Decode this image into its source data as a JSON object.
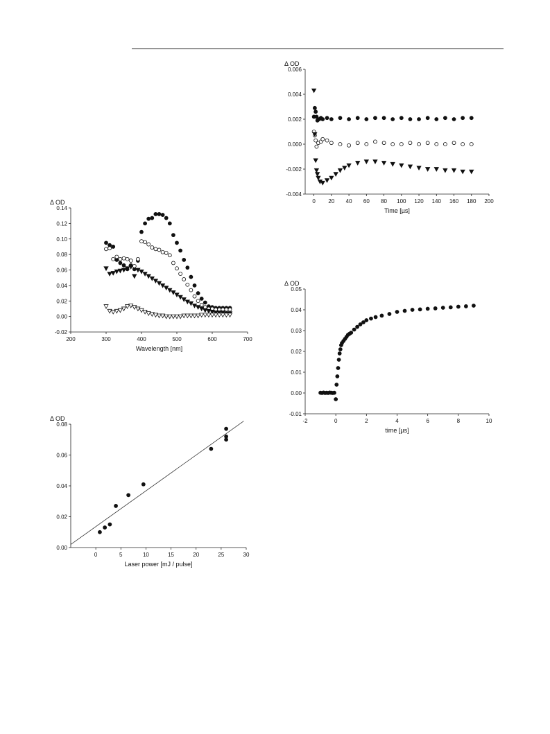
{
  "chart_data": [
    {
      "id": "transient-time",
      "type": "scatter",
      "ylabel": "Δ OD",
      "xlabel": "Time [µs]",
      "xlim": [
        -10,
        200
      ],
      "ylim": [
        -0.004,
        0.006
      ],
      "xticks": [
        0,
        20,
        40,
        60,
        80,
        100,
        120,
        140,
        160,
        180,
        200
      ],
      "yticks": [
        -0.004,
        -0.002,
        0.0,
        0.002,
        0.004,
        0.006
      ],
      "ytick_labels": [
        "-0.004",
        "-0.002",
        "0.000",
        "0.002",
        "0.004",
        "0.006"
      ],
      "series": [
        {
          "marker": "filled-circle",
          "x": [
            0,
            1,
            2,
            3,
            4,
            6,
            8,
            10,
            15,
            20,
            30,
            40,
            50,
            60,
            70,
            80,
            90,
            100,
            110,
            120,
            130,
            140,
            150,
            160,
            170,
            180
          ],
          "y": [
            0.0022,
            0.0029,
            0.0026,
            0.0022,
            0.0019,
            0.002,
            0.0021,
            0.002,
            0.0021,
            0.002,
            0.0021,
            0.002,
            0.0021,
            0.002,
            0.0021,
            0.0021,
            0.002,
            0.0021,
            0.002,
            0.002,
            0.0021,
            0.002,
            0.0021,
            0.002,
            0.0021,
            0.0021
          ]
        },
        {
          "marker": "open-circle",
          "x": [
            0,
            1,
            2,
            3,
            5,
            8,
            10,
            15,
            20,
            30,
            40,
            50,
            60,
            70,
            80,
            90,
            100,
            110,
            120,
            130,
            140,
            150,
            160,
            170,
            180
          ],
          "y": [
            0.001,
            0.0007,
            0.0003,
            -0.0002,
            0.0001,
            0.0002,
            0.0004,
            0.0003,
            0.0001,
            0.0,
            -0.0001,
            0.0001,
            0.0,
            0.0002,
            0.0001,
            0.0,
            0.0,
            0.0001,
            0.0,
            0.0001,
            0.0,
            0.0,
            0.0001,
            0.0,
            0.0
          ]
        },
        {
          "marker": "filled-triangle-down",
          "x": [
            0,
            1,
            2,
            3,
            4,
            5,
            7,
            10,
            15,
            20,
            25,
            30,
            35,
            40,
            50,
            60,
            70,
            80,
            90,
            100,
            110,
            120,
            130,
            140,
            150,
            160,
            170,
            180
          ],
          "y": [
            0.0043,
            0.0008,
            -0.0013,
            -0.0021,
            -0.0024,
            -0.0027,
            -0.003,
            -0.0031,
            -0.0029,
            -0.0027,
            -0.0024,
            -0.0021,
            -0.0019,
            -0.0017,
            -0.0015,
            -0.0014,
            -0.0014,
            -0.0015,
            -0.0016,
            -0.0017,
            -0.0018,
            -0.0019,
            -0.002,
            -0.002,
            -0.0021,
            -0.0021,
            -0.0022,
            -0.0022
          ]
        }
      ]
    },
    {
      "id": "spectrum",
      "type": "scatter",
      "ylabel": "Δ OD",
      "xlabel": "Wavelength [nm]",
      "xlim": [
        200,
        700
      ],
      "ylim": [
        -0.02,
        0.14
      ],
      "xticks": [
        200,
        300,
        400,
        500,
        600,
        700
      ],
      "yticks": [
        -0.02,
        0.0,
        0.02,
        0.04,
        0.06,
        0.08,
        0.1,
        0.12,
        0.14
      ],
      "ytick_labels": [
        "-0.02",
        "0.00",
        "0.02",
        "0.04",
        "0.06",
        "0.08",
        "0.10",
        "0.12",
        "0.14"
      ],
      "series": [
        {
          "marker": "filled-circle",
          "x": [
            300,
            310,
            320,
            330,
            340,
            350,
            360,
            370,
            380,
            390,
            400,
            410,
            420,
            430,
            440,
            450,
            460,
            470,
            480,
            490,
            500,
            510,
            520,
            530,
            540,
            550,
            560,
            570,
            580,
            590,
            600,
            610,
            620,
            630,
            640,
            650
          ],
          "y": [
            0.095,
            0.092,
            0.09,
            0.073,
            0.069,
            0.066,
            0.061,
            0.066,
            0.061,
            0.072,
            0.109,
            0.12,
            0.126,
            0.127,
            0.132,
            0.132,
            0.131,
            0.127,
            0.12,
            0.105,
            0.095,
            0.085,
            0.073,
            0.063,
            0.051,
            0.04,
            0.03,
            0.023,
            0.018,
            0.013,
            0.012,
            0.011,
            0.011,
            0.011,
            0.011,
            0.011
          ]
        },
        {
          "marker": "open-circle",
          "x": [
            300,
            310,
            320,
            330,
            340,
            350,
            360,
            370,
            380,
            390,
            400,
            410,
            420,
            430,
            440,
            450,
            460,
            470,
            480,
            490,
            500,
            510,
            520,
            530,
            540,
            550,
            560,
            570,
            580,
            590,
            600,
            610,
            620,
            630,
            640,
            650
          ],
          "y": [
            0.087,
            0.088,
            0.074,
            0.077,
            0.074,
            0.075,
            0.074,
            0.072,
            0.065,
            0.074,
            0.097,
            0.096,
            0.093,
            0.089,
            0.087,
            0.086,
            0.083,
            0.082,
            0.079,
            0.069,
            0.062,
            0.055,
            0.048,
            0.041,
            0.034,
            0.026,
            0.02,
            0.015,
            0.012,
            0.01,
            0.01,
            0.009,
            0.009,
            0.009,
            0.009,
            0.009
          ]
        },
        {
          "marker": "filled-triangle-down",
          "x": [
            300,
            310,
            320,
            330,
            340,
            350,
            360,
            370,
            380,
            390,
            400,
            410,
            420,
            430,
            440,
            450,
            460,
            470,
            480,
            490,
            500,
            510,
            520,
            530,
            540,
            550,
            560,
            570,
            580,
            590,
            600,
            610,
            620,
            630,
            640,
            650
          ],
          "y": [
            0.062,
            0.055,
            0.056,
            0.058,
            0.059,
            0.06,
            0.062,
            0.064,
            0.052,
            0.06,
            0.058,
            0.055,
            0.052,
            0.049,
            0.046,
            0.043,
            0.04,
            0.037,
            0.034,
            0.031,
            0.028,
            0.025,
            0.022,
            0.019,
            0.017,
            0.014,
            0.012,
            0.01,
            0.008,
            0.007,
            0.006,
            0.005,
            0.005,
            0.005,
            0.004,
            0.004
          ]
        },
        {
          "marker": "open-triangle-down",
          "x": [
            300,
            310,
            320,
            330,
            340,
            350,
            360,
            370,
            380,
            390,
            400,
            410,
            420,
            430,
            440,
            450,
            460,
            470,
            480,
            490,
            500,
            510,
            520,
            530,
            540,
            550,
            560,
            570,
            580,
            590,
            600,
            610,
            620,
            630,
            640,
            650
          ],
          "y": [
            0.013,
            0.007,
            0.006,
            0.007,
            0.008,
            0.01,
            0.013,
            0.014,
            0.012,
            0.01,
            0.008,
            0.006,
            0.004,
            0.003,
            0.002,
            0.001,
            0.001,
            0.0,
            0.0,
            0.0,
            0.0,
            0.0,
            0.001,
            0.001,
            0.001,
            0.001,
            0.001,
            0.002,
            0.002,
            0.002,
            0.002,
            0.002,
            0.002,
            0.002,
            0.002,
            0.002
          ]
        }
      ]
    },
    {
      "id": "rise",
      "type": "scatter",
      "ylabel": "Δ OD",
      "xlabel": "time [µs]",
      "xlim": [
        -2,
        10
      ],
      "ylim": [
        -0.01,
        0.05
      ],
      "xticks": [
        -2,
        0,
        2,
        4,
        6,
        8,
        10
      ],
      "yticks": [
        -0.01,
        0.0,
        0.01,
        0.02,
        0.03,
        0.04,
        0.05
      ],
      "ytick_labels": [
        "-0.01",
        "0.00",
        "0.01",
        "0.02",
        "0.03",
        "0.04",
        "0.05"
      ],
      "series": [
        {
          "marker": "filled-circle",
          "x": [
            -1.0,
            -0.9,
            -0.8,
            -0.7,
            -0.6,
            -0.5,
            -0.4,
            -0.3,
            -0.2,
            -0.1,
            0.0,
            0.05,
            0.1,
            0.15,
            0.2,
            0.25,
            0.3,
            0.35,
            0.4,
            0.5,
            0.6,
            0.7,
            0.8,
            0.9,
            1.0,
            1.2,
            1.4,
            1.6,
            1.8,
            2.0,
            2.3,
            2.6,
            3.0,
            3.5,
            4.0,
            4.5,
            5.0,
            5.5,
            6.0,
            6.5,
            7.0,
            7.5,
            8.0,
            8.5,
            9.0
          ],
          "y": [
            0.0001,
            0.0,
            0.0002,
            0.0,
            0.0001,
            0.0,
            0.0002,
            0.0001,
            0.0,
            0.0001,
            -0.003,
            0.004,
            0.008,
            0.012,
            0.016,
            0.019,
            0.021,
            0.023,
            0.024,
            0.025,
            0.026,
            0.027,
            0.028,
            0.0285,
            0.029,
            0.0305,
            0.0318,
            0.033,
            0.034,
            0.035,
            0.0358,
            0.0365,
            0.0372,
            0.038,
            0.039,
            0.0395,
            0.04,
            0.0402,
            0.0405,
            0.0407,
            0.041,
            0.0412,
            0.0415,
            0.0417,
            0.042
          ]
        }
      ]
    },
    {
      "id": "laser-power",
      "type": "scatter",
      "ylabel": "Δ OD",
      "xlabel": "Laser power [mJ / pulse]",
      "xlim": [
        -5,
        30
      ],
      "ylim": [
        0.0,
        0.08
      ],
      "xticks": [
        0,
        5,
        10,
        15,
        20,
        25,
        30
      ],
      "yticks": [
        0.0,
        0.02,
        0.04,
        0.06,
        0.08
      ],
      "ytick_labels": [
        "0.00",
        "0.02",
        "0.04",
        "0.06",
        "0.08"
      ],
      "series": [
        {
          "marker": "filled-circle",
          "x": [
            0.8,
            1.8,
            2.8,
            4.0,
            6.5,
            9.5,
            23.0,
            26.0,
            26.0,
            26.0
          ],
          "y": [
            0.01,
            0.013,
            0.015,
            0.027,
            0.034,
            0.041,
            0.064,
            0.077,
            0.072,
            0.07
          ]
        }
      ],
      "fit_line": {
        "x": [
          -5,
          29.5
        ],
        "y": [
          0.002,
          0.082
        ]
      }
    }
  ]
}
